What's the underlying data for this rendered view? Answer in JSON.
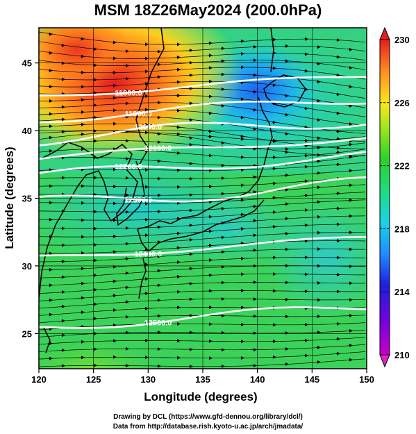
{
  "title": "MSM 18Z26May2024 (200.0hPa)",
  "map": {
    "xlabel": "Longitude (degrees)",
    "ylabel": "Latitude  (degrees)",
    "lon_ticks": [
      "120",
      "125",
      "130",
      "135",
      "140",
      "145",
      "150"
    ],
    "lat_ticks": [
      "25",
      "30",
      "35",
      "40",
      "45"
    ],
    "contours": [
      {
        "label": "11800.0",
        "lat": 42.6
      },
      {
        "label": "11900.0",
        "lat": 40.9
      },
      {
        "label": "12000.0",
        "lat": 39.4
      },
      {
        "label": "12100.0",
        "lat": 38.0
      },
      {
        "label": "12200.0",
        "lat": 36.7
      },
      {
        "label": "12300.0",
        "lat": 34.6
      },
      {
        "label": "12400.0",
        "lat": 30.6
      },
      {
        "label": "12500.0",
        "lat": 25.5
      }
    ]
  },
  "colorbar": {
    "labels": [
      "230",
      "226",
      "222",
      "218",
      "214",
      "210"
    ],
    "min": 210,
    "max": 230,
    "colors": [
      "#c800c8",
      "#1e1edc",
      "#1e8cff",
      "#1ed2e6",
      "#1edc82",
      "#2ad228",
      "#a0e61e",
      "#ffe61e",
      "#ff8c1e",
      "#e61e1e"
    ]
  },
  "footer": {
    "line1": "Drawing by DCL (https://www.gfd-dennou.org/library/dcl/)",
    "line2": "Data from http://database.rish.kyoto-u.ac.jp/arch/jmadata/"
  }
}
